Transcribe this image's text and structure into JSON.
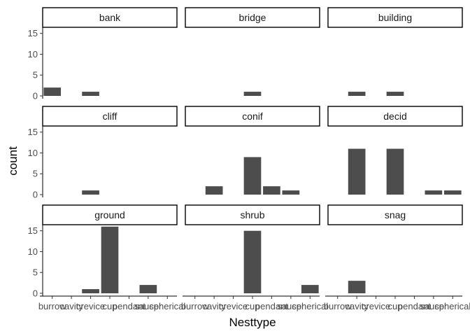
{
  "chart_data": {
    "type": "bar",
    "facet_layout": "3x3",
    "xlabel": "Nesttype",
    "ylabel": "count",
    "categories": [
      "burrow",
      "cavity",
      "crevice",
      "cup",
      "pendant",
      "saucer",
      "spherical"
    ],
    "yticks": [
      0,
      5,
      10,
      15
    ],
    "ylim": [
      0,
      16.8
    ],
    "bar_color": "#4d4d4d",
    "grid": false,
    "facets": [
      {
        "name": "bank",
        "values": [
          2,
          0,
          1,
          0,
          0,
          0,
          0
        ]
      },
      {
        "name": "bridge",
        "values": [
          0,
          0,
          0,
          1,
          0,
          0,
          0
        ]
      },
      {
        "name": "building",
        "values": [
          0,
          1,
          0,
          1,
          0,
          0,
          0
        ]
      },
      {
        "name": "cliff",
        "values": [
          0,
          0,
          1,
          0,
          0,
          0,
          0
        ]
      },
      {
        "name": "conif",
        "values": [
          0,
          2,
          0,
          9,
          2,
          1,
          0
        ]
      },
      {
        "name": "decid",
        "values": [
          0,
          11,
          0,
          11,
          0,
          1,
          1
        ]
      },
      {
        "name": "ground",
        "values": [
          0,
          0,
          1,
          16,
          0,
          2,
          0
        ]
      },
      {
        "name": "shrub",
        "values": [
          0,
          0,
          0,
          15,
          0,
          0,
          2
        ]
      },
      {
        "name": "snag",
        "values": [
          0,
          3,
          0,
          0,
          0,
          0,
          0
        ]
      }
    ]
  }
}
